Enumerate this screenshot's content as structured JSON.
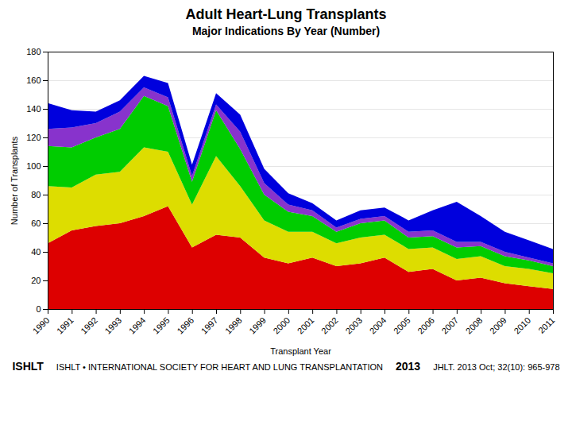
{
  "chart_data": {
    "type": "area",
    "title": "Adult Heart-Lung Transplants",
    "subtitle": "Major Indications By Year (Number)",
    "xlabel": "Transplant Year",
    "ylabel": "Number of Transplants",
    "x": [
      1990,
      1991,
      1992,
      1993,
      1994,
      1995,
      1996,
      1997,
      1998,
      1999,
      2000,
      2001,
      2002,
      2003,
      2004,
      2005,
      2006,
      2007,
      2008,
      2009,
      2010,
      2011
    ],
    "series": [
      {
        "color": "#dd0000",
        "values": [
          46,
          55,
          58,
          60,
          65,
          72,
          43,
          52,
          50,
          36,
          32,
          36,
          30,
          32,
          36,
          26,
          28,
          20,
          22,
          18,
          16,
          14
        ]
      },
      {
        "color": "#dddd00",
        "values": [
          40,
          30,
          36,
          36,
          48,
          38,
          30,
          55,
          36,
          26,
          22,
          18,
          16,
          18,
          16,
          16,
          15,
          15,
          15,
          12,
          12,
          11
        ]
      },
      {
        "color": "#00cc00",
        "values": [
          28,
          28,
          26,
          30,
          36,
          32,
          16,
          32,
          26,
          18,
          14,
          11,
          8,
          10,
          10,
          8,
          8,
          8,
          7,
          7,
          6,
          5
        ]
      },
      {
        "color": "#8833cc",
        "values": [
          12,
          14,
          10,
          12,
          6,
          6,
          4,
          4,
          12,
          8,
          5,
          4,
          3,
          3,
          3,
          4,
          4,
          4,
          3,
          3,
          2,
          2
        ]
      },
      {
        "color": "#0000dd",
        "values": [
          18,
          12,
          8,
          8,
          8,
          10,
          8,
          8,
          12,
          10,
          8,
          5,
          5,
          6,
          6,
          8,
          14,
          28,
          18,
          14,
          12,
          10
        ]
      }
    ],
    "stacked": true,
    "xlim": [
      1990,
      2011
    ],
    "xticks": [
      1990,
      1991,
      1992,
      1993,
      1994,
      1995,
      1996,
      1997,
      1998,
      1999,
      2000,
      2001,
      2002,
      2003,
      2004,
      2005,
      2006,
      2007,
      2008,
      2009,
      2010,
      2011
    ],
    "ylim": [
      0,
      180
    ],
    "yticks": [
      0,
      20,
      40,
      60,
      80,
      100,
      120,
      140,
      160,
      180
    ],
    "grid": true,
    "annotations": [
      "ISHLT",
      "ISHLT • INTERNATIONAL SOCIETY FOR HEART AND LUNG TRANSPLANTATION",
      "2013",
      "JHLT. 2013 Oct; 32(10): 965-978"
    ]
  }
}
